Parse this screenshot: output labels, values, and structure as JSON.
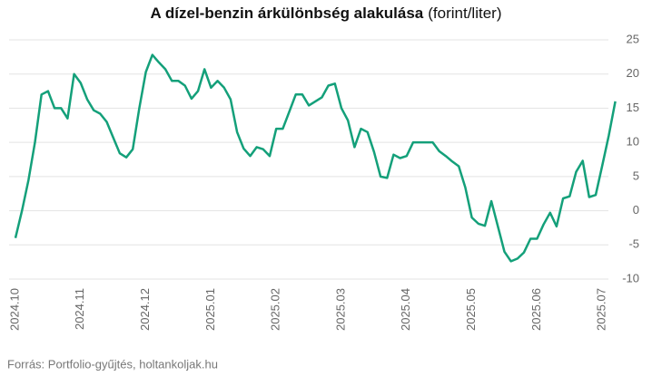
{
  "chart_data": {
    "type": "line",
    "title": "A dízel-benzin árkülönbség alakulása",
    "unit": "(forint/liter)",
    "source": "Forrás: Portfolio-gyűjtés, holtankoljak.hu",
    "categories": [
      "2024.10",
      null,
      null,
      null,
      null,
      null,
      null,
      null,
      null,
      null,
      "2024.11",
      null,
      null,
      null,
      null,
      null,
      null,
      null,
      null,
      null,
      "2024.12",
      null,
      null,
      null,
      null,
      null,
      null,
      null,
      null,
      null,
      "2025.01",
      null,
      null,
      null,
      null,
      null,
      null,
      null,
      null,
      null,
      "2025.02",
      null,
      null,
      null,
      null,
      null,
      null,
      null,
      null,
      null,
      "2025.03",
      null,
      null,
      null,
      null,
      null,
      null,
      null,
      null,
      null,
      "2025.04",
      null,
      null,
      null,
      null,
      null,
      null,
      null,
      null,
      null,
      "2025.05",
      null,
      null,
      null,
      null,
      null,
      null,
      null,
      null,
      null,
      "2025.06",
      null,
      null,
      null,
      null,
      null,
      null,
      null,
      null,
      null,
      "2025.07",
      null,
      null
    ],
    "series": [
      {
        "name": "dízel-benzin árkülönbség",
        "color": "#14a07a",
        "values": [
          -4,
          0,
          4.5,
          10,
          17,
          17.5,
          15,
          15,
          13.5,
          20,
          18.7,
          16.3,
          14.7,
          14.2,
          13,
          10.7,
          8.4,
          7.8,
          9,
          15,
          20.3,
          22.8,
          21.7,
          20.7,
          19,
          19,
          18.3,
          16.4,
          17.5,
          20.7,
          18,
          19,
          18,
          16.3,
          11.5,
          9.1,
          8,
          9.3,
          9,
          8,
          12,
          12,
          14.5,
          17,
          17,
          15.4,
          16,
          16.6,
          18.3,
          18.6,
          15,
          13.2,
          9.3,
          12,
          11.5,
          8.6,
          5,
          4.8,
          8.2,
          7.7,
          8,
          10,
          10,
          10,
          10,
          8.7,
          8,
          7.2,
          6.5,
          3.4,
          -1,
          -1.9,
          -2.2,
          1.4,
          -2.3,
          -6,
          -7.4,
          -7,
          -6.1,
          -4.1,
          -4.1,
          -2,
          -0.3,
          -2.3,
          1.8,
          2.1,
          5.7,
          7.3,
          2,
          2.3,
          6.6,
          11,
          16
        ]
      }
    ],
    "ylim": [
      -10,
      25
    ],
    "yticks": [
      -10,
      -5,
      0,
      5,
      10,
      15,
      20,
      25
    ],
    "grid": true
  }
}
